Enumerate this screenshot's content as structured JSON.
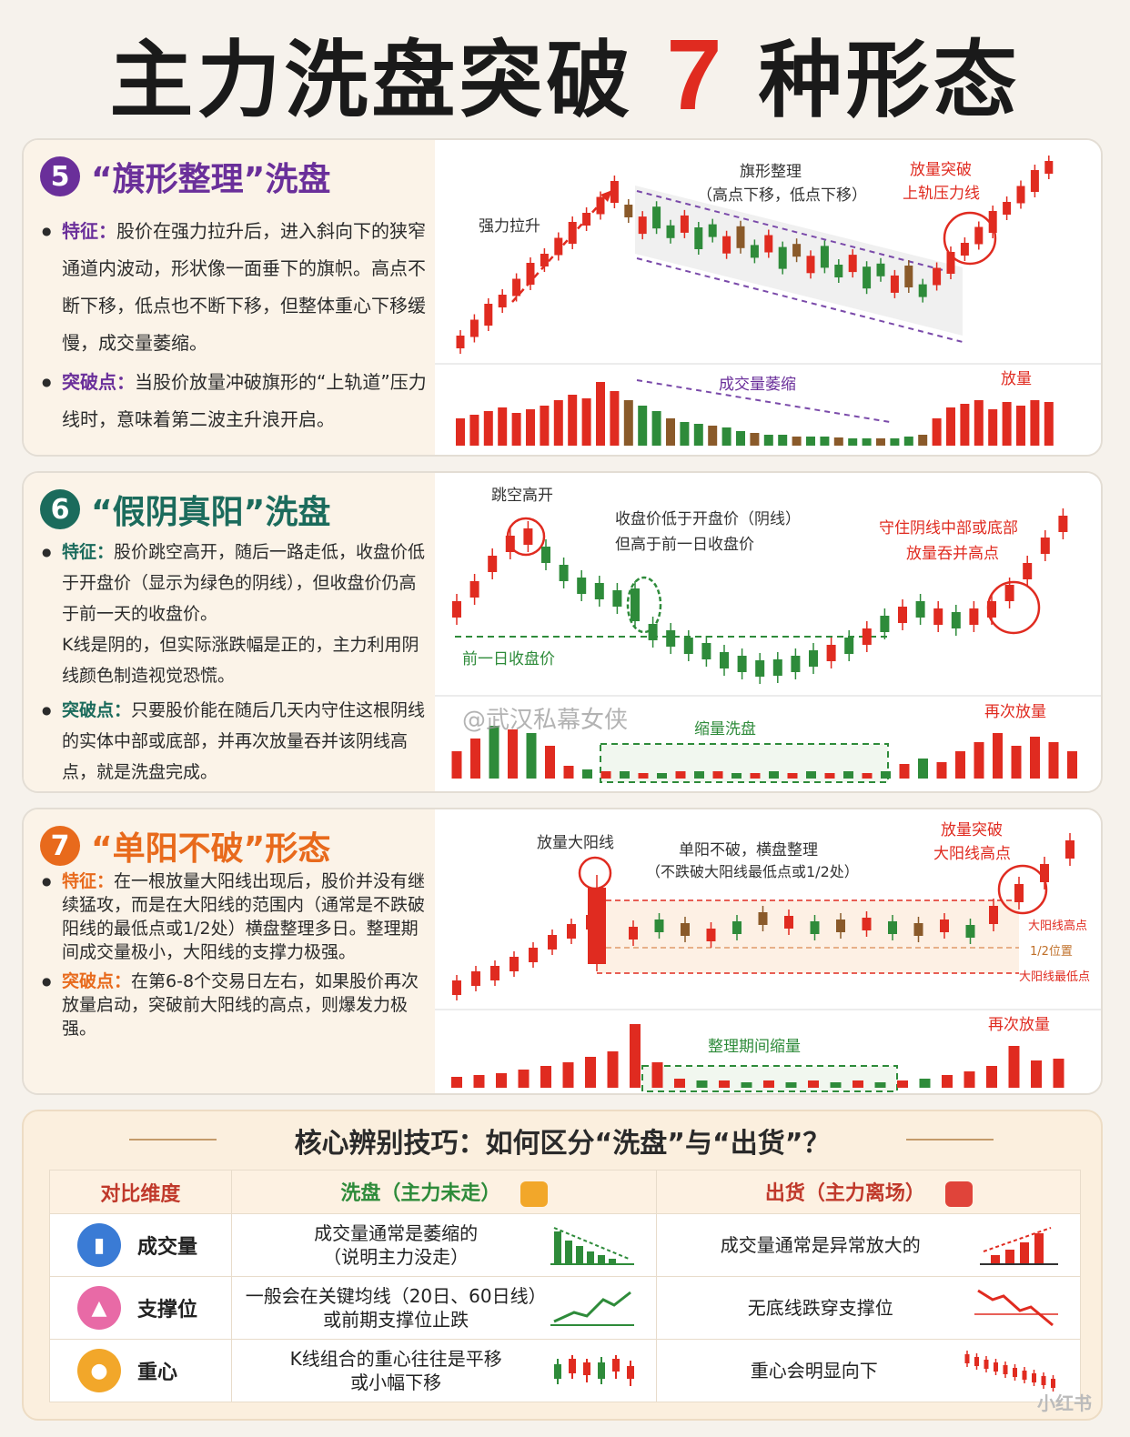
{
  "title": {
    "main": "主力洗盘突破",
    "num": "7",
    "tail": "种形态"
  },
  "watermark": "@武汉私幕女侠",
  "corner_mark": "小红书",
  "colors": {
    "red": "#e02b20",
    "green": "#2e8b3a",
    "purple": "#6a2f9a",
    "teal": "#1b6b5c",
    "orange": "#e86a1c"
  },
  "card5": {
    "num": "5",
    "title": "“旗形整理”洗盘",
    "f_key": "特征：",
    "f_text": "股价在强力拉升后，进入斜向下的狭窄通道内波动，形状像一面垂下的旗帜。高点不断下移，低点也不断下移，但整体重心下移缓慢，成交量萎缩。",
    "b_key": "突破点：",
    "b_text": "当股价放量冲破旗形的“上轨道”压力线时，意味着第二波主升浪开启。",
    "labels": {
      "surge": "强力拉升",
      "flag1": "旗形整理",
      "flag2": "（高点下移，低点下移）",
      "bo1": "放量突破",
      "bo2": "上轨压力线",
      "vol_shrink": "成交量萎缩",
      "vol_up": "放量"
    }
  },
  "card6": {
    "num": "6",
    "title": "“假阴真阳”洗盘",
    "f_key": "特征：",
    "f_text": "股价跳空高开，随后一路走低，收盘价低于开盘价（显示为绿色的阴线），但收盘价仍高于前一天的收盘价。",
    "f_text2": "K线是阴的，但实际涨跌幅是正的，主力利用阴线颜色制造视觉恐慌。",
    "b_key": "突破点：",
    "b_text": "只要股价能在随后几天内守住这根阴线的实体中部或底部，并再次放量吞并该阴线高点，就是洗盘完成。",
    "labels": {
      "gap": "跳空高开",
      "close1": "收盘价低于开盘价（阴线）",
      "close2": "但高于前一日收盘价",
      "hold1": "守住阴线中部或底部",
      "hold2": "放量吞并高点",
      "prev": "前一日收盘价",
      "shrink": "缩量洗盘",
      "again": "再次放量"
    }
  },
  "card7": {
    "num": "7",
    "title": "“单阳不破”形态",
    "f_key": "特征：",
    "f_text": "在一根放量大阳线出现后，股价并没有继续猛攻，而是在大阳线的范围内（通常是不跌破阳线的最低点或1/2处）横盘整理多日。整理期间成交量极小，大阳线的支撑力极强。",
    "b_key": "突破点：",
    "b_text": "在第6-8个交易日左右，如果股价再次放量启动，突破前大阳线的高点，则爆发力极强。",
    "labels": {
      "big": "放量大阳线",
      "side1": "单阳不破，横盘整理",
      "side2": "（不跌破大阳线最低点或1/2处）",
      "bo1": "放量突破",
      "bo2": "大阳线高点",
      "hi": "大阳线高点",
      "half": "1/2位置",
      "lo": "大阳线最低点",
      "shrink": "整理期间缩量",
      "again": "再次放量"
    }
  },
  "compare": {
    "title": "核心辨别技巧：如何区分“洗盘”与“出货”？",
    "headers": [
      "对比维度",
      "洗盘（主力未走）",
      "出货（主力离场）"
    ],
    "rows": [
      {
        "dim": "成交量",
        "wash": "成交量通常是萎缩的\n（说明主力没走）",
        "dist": "成交量通常是异常放大的"
      },
      {
        "dim": "支撑位",
        "wash": "一般会在关键均线（20日、60日线）\n或前期支撑位止跌",
        "dist": "无底线跌穿支撑位"
      },
      {
        "dim": "重心",
        "wash": "K线组合的重心往往是平移\n或小幅下移",
        "dist": "重心会明显向下"
      }
    ]
  }
}
